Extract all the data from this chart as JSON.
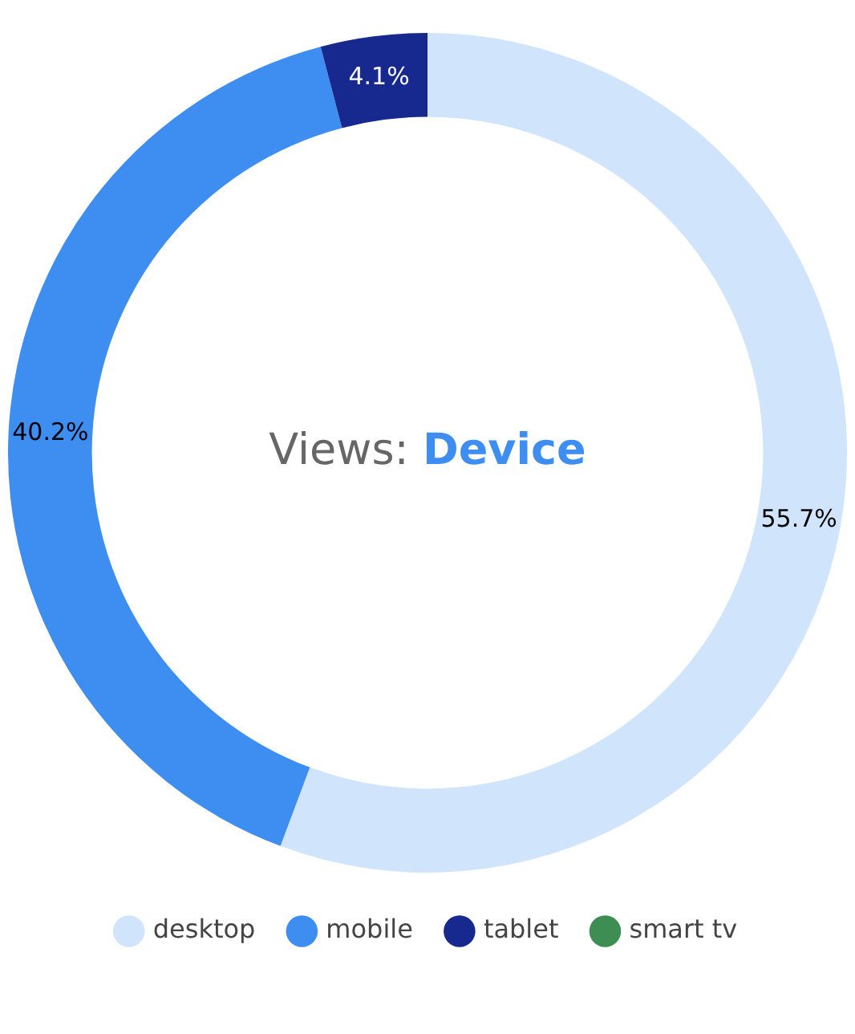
{
  "chart_data": {
    "type": "donut",
    "title": "Views:",
    "subtitle": "Device",
    "categories": [
      "desktop",
      "mobile",
      "tablet",
      "smart tv"
    ],
    "values": [
      55.7,
      40.2,
      4.1,
      0
    ],
    "colors": [
      "#d0e4fb",
      "#3d8ef0",
      "#17298f",
      "#3e8e53"
    ],
    "value_labels": [
      "55.7%",
      "40.2%",
      "4.1%",
      null
    ],
    "legend": "bottom"
  }
}
